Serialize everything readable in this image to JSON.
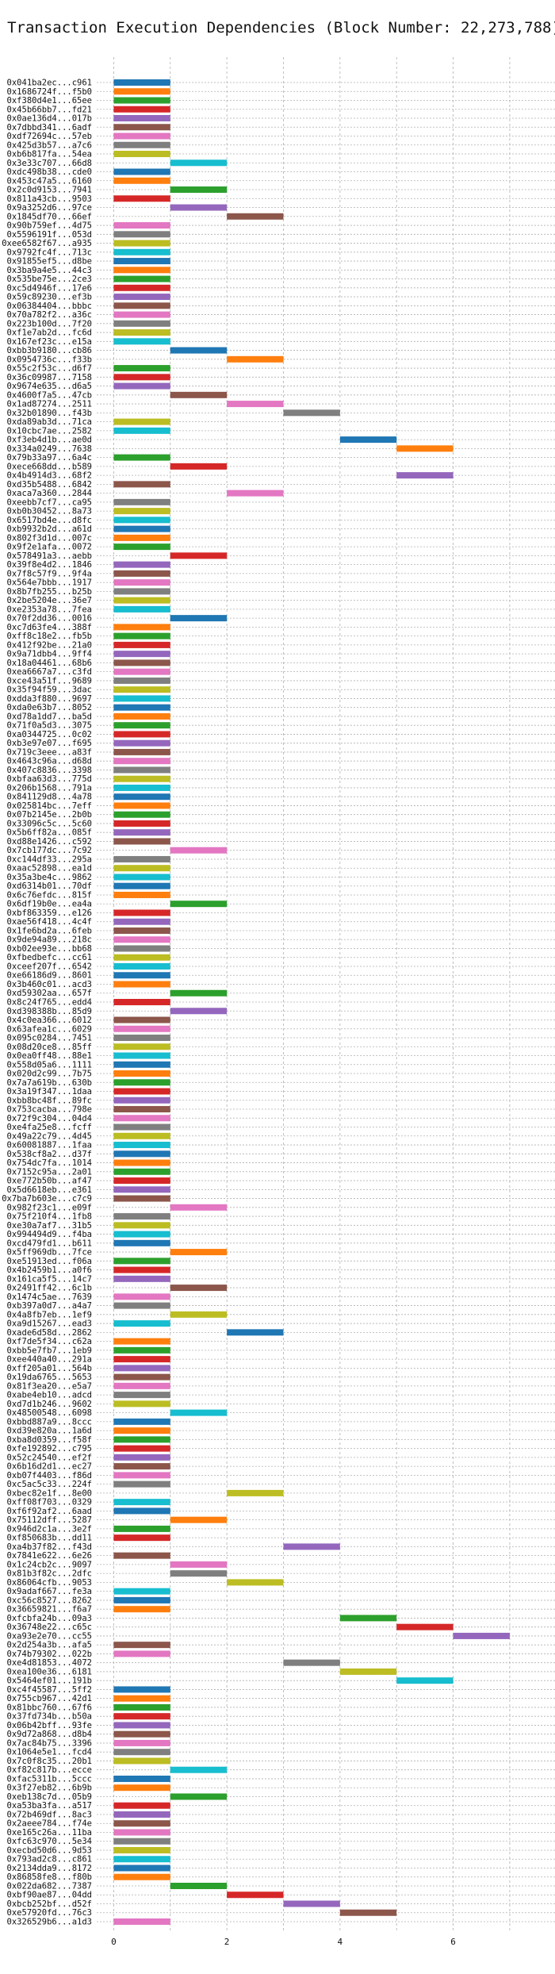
{
  "chart_data": {
    "type": "bar",
    "orientation": "horizontal-gantt",
    "title": "Transaction Execution Dependencies (Block Number: 22,273,788)",
    "xlabel": "",
    "ylabel": "",
    "xlim": [
      -0.3,
      7.8
    ],
    "xticks": [
      0,
      2,
      4,
      6
    ],
    "grid": true,
    "legend": "none",
    "palette": [
      "#1f77b4",
      "#ff7f0e",
      "#2ca02c",
      "#d62728",
      "#9467bd",
      "#8c564b",
      "#e377c2",
      "#7f7f7f",
      "#bcbd22",
      "#17becf"
    ],
    "transactions": [
      {
        "label": "0x041ba2ec...c961",
        "start": 0
      },
      {
        "label": "0x1686724f...f5b0",
        "start": 0
      },
      {
        "label": "0xf380d4e1...65ee",
        "start": 0
      },
      {
        "label": "0x45b66bb7...fd21",
        "start": 0
      },
      {
        "label": "0x0ae136d4...017b",
        "start": 0
      },
      {
        "label": "0x7dbbd341...6adf",
        "start": 0
      },
      {
        "label": "0xdf72694c...57eb",
        "start": 0
      },
      {
        "label": "0x425d3b57...a7c6",
        "start": 0
      },
      {
        "label": "0xb6b817fa...54ea",
        "start": 0
      },
      {
        "label": "0x3e33c707...66d8",
        "start": 1
      },
      {
        "label": "0xdc498b38...cde0",
        "start": 0
      },
      {
        "label": "0x453c47a5...6160",
        "start": 0
      },
      {
        "label": "0x2c0d9153...7941",
        "start": 1
      },
      {
        "label": "0x811a43cb...9503",
        "start": 0
      },
      {
        "label": "0x9a3252d6...97ce",
        "start": 1
      },
      {
        "label": "0x1845df70...66ef",
        "start": 2
      },
      {
        "label": "0x90b759ef...4d75",
        "start": 0
      },
      {
        "label": "0x5596191f...053d",
        "start": 0
      },
      {
        "label": "0xee6582f67...a935",
        "start": 0
      },
      {
        "label": "0x9792fc4f...713c",
        "start": 0
      },
      {
        "label": "0x91855ef5...d8be",
        "start": 0
      },
      {
        "label": "0x3ba9a4e5...44c3",
        "start": 0
      },
      {
        "label": "0x535be75e...2ce3",
        "start": 0
      },
      {
        "label": "0xc5d4946f...17e6",
        "start": 0
      },
      {
        "label": "0x59c89230...ef3b",
        "start": 0
      },
      {
        "label": "0x06384404...bbbc",
        "start": 0
      },
      {
        "label": "0x70a782f2...a36c",
        "start": 0
      },
      {
        "label": "0x223b100d...7f20",
        "start": 0
      },
      {
        "label": "0xf1e7ab2d...fc6d",
        "start": 0
      },
      {
        "label": "0x167ef23c...e15a",
        "start": 0
      },
      {
        "label": "0xbb3b9180...cb86",
        "start": 1
      },
      {
        "label": "0x0954736c...f33b",
        "start": 2
      },
      {
        "label": "0x55c2f53c...d6f7",
        "start": 0
      },
      {
        "label": "0x36c09987...7158",
        "start": 0
      },
      {
        "label": "0x9674e635...d6a5",
        "start": 0
      },
      {
        "label": "0x4600f7a5...47cb",
        "start": 1
      },
      {
        "label": "0x1ad87274...2511",
        "start": 2
      },
      {
        "label": "0x32b01890...f43b",
        "start": 3
      },
      {
        "label": "0xda89ab3d...71ca",
        "start": 0
      },
      {
        "label": "0x10cbc7ae...2582",
        "start": 0
      },
      {
        "label": "0xf3eb4d1b...ae0d",
        "start": 4
      },
      {
        "label": "0x334a0249...7638",
        "start": 5
      },
      {
        "label": "0x79b33a97...6a4c",
        "start": 0
      },
      {
        "label": "0xece668dd...b589",
        "start": 1
      },
      {
        "label": "0x4b4914d3...68f2",
        "start": 5
      },
      {
        "label": "0xd35b5488...6842",
        "start": 0
      },
      {
        "label": "0xaca7a360...2844",
        "start": 2
      },
      {
        "label": "0xeebb7cf7...ca95",
        "start": 0
      },
      {
        "label": "0xb0b30452...8a73",
        "start": 0
      },
      {
        "label": "0x6517bd4e...d8fc",
        "start": 0
      },
      {
        "label": "0xb9932b2d...a61d",
        "start": 0
      },
      {
        "label": "0x802f3d1d...007c",
        "start": 0
      },
      {
        "label": "0x9f2e1afa...0072",
        "start": 0
      },
      {
        "label": "0x578491a3...aebb",
        "start": 1
      },
      {
        "label": "0x39f8e4d2...1846",
        "start": 0
      },
      {
        "label": "0x7f8c57f9...9f4a",
        "start": 0
      },
      {
        "label": "0x564e7bbb...1917",
        "start": 0
      },
      {
        "label": "0x8b7fb255...b25b",
        "start": 0
      },
      {
        "label": "0x2be5204e...36e7",
        "start": 0
      },
      {
        "label": "0xe2353a78...7fea",
        "start": 0
      },
      {
        "label": "0x70f2dd36...0016",
        "start": 1
      },
      {
        "label": "0xc7d63fe4...388f",
        "start": 0
      },
      {
        "label": "0xff8c18e2...fb5b",
        "start": 0
      },
      {
        "label": "0x412f92be...21a0",
        "start": 0
      },
      {
        "label": "0x9a71dbb4...9ff4",
        "start": 0
      },
      {
        "label": "0x18a04461...68b6",
        "start": 0
      },
      {
        "label": "0xea6667a7...c3fd",
        "start": 0
      },
      {
        "label": "0xce43a51f...9689",
        "start": 0
      },
      {
        "label": "0x35f94f59...3dac",
        "start": 0
      },
      {
        "label": "0xdda3f880...9697",
        "start": 0
      },
      {
        "label": "0xda0e63b7...8052",
        "start": 0
      },
      {
        "label": "0xd78a1dd7...ba5d",
        "start": 0
      },
      {
        "label": "0x71f0a5d3...3075",
        "start": 0
      },
      {
        "label": "0xa0344725...0c02",
        "start": 0
      },
      {
        "label": "0xb3e97e07...f695",
        "start": 0
      },
      {
        "label": "0x719c3eee...a83f",
        "start": 0
      },
      {
        "label": "0x4643c96a...d68d",
        "start": 0
      },
      {
        "label": "0x407c8836...3398",
        "start": 0
      },
      {
        "label": "0xbfaa63d3...775d",
        "start": 0
      },
      {
        "label": "0x206b1568...791a",
        "start": 0
      },
      {
        "label": "0x841129d8...4a78",
        "start": 0
      },
      {
        "label": "0x025814bc...7eff",
        "start": 0
      },
      {
        "label": "0x07b2145e...2b0b",
        "start": 0
      },
      {
        "label": "0x33096c5c...5c60",
        "start": 0
      },
      {
        "label": "0x5b6ff82a...085f",
        "start": 0
      },
      {
        "label": "0xd88e1426...c592",
        "start": 0
      },
      {
        "label": "0x7cb177dc...7c92",
        "start": 1
      },
      {
        "label": "0xc144df33...295a",
        "start": 0
      },
      {
        "label": "0xaac52898...ea1d",
        "start": 0
      },
      {
        "label": "0x35a3be4c...9862",
        "start": 0
      },
      {
        "label": "0xd6314b01...70df",
        "start": 0
      },
      {
        "label": "0x6c76efdc...815f",
        "start": 0
      },
      {
        "label": "0x6df19b0e...ea4a",
        "start": 1
      },
      {
        "label": "0xbf863359...e126",
        "start": 0
      },
      {
        "label": "0xae56f418...4c4f",
        "start": 0
      },
      {
        "label": "0x1fe6bd2a...6feb",
        "start": 0
      },
      {
        "label": "0x9de94a89...218c",
        "start": 0
      },
      {
        "label": "0xb02ee93e...bb68",
        "start": 0
      },
      {
        "label": "0xfbedbefc...cc61",
        "start": 0
      },
      {
        "label": "0xceef207f...6542",
        "start": 0
      },
      {
        "label": "0xe66186d9...8601",
        "start": 0
      },
      {
        "label": "0x3b460c01...acd3",
        "start": 0
      },
      {
        "label": "0xd59302aa...657f",
        "start": 1
      },
      {
        "label": "0x8c24f765...edd4",
        "start": 0
      },
      {
        "label": "0xd398388b...85d9",
        "start": 1
      },
      {
        "label": "0x4c0ea366...6012",
        "start": 0
      },
      {
        "label": "0x63afea1c...6029",
        "start": 0
      },
      {
        "label": "0x095c0284...7451",
        "start": 0
      },
      {
        "label": "0x08d20ce8...85ff",
        "start": 0
      },
      {
        "label": "0x0ea0ff48...88e1",
        "start": 0
      },
      {
        "label": "0x558d05a6...1111",
        "start": 0
      },
      {
        "label": "0x020d2c99...7b75",
        "start": 0
      },
      {
        "label": "0x7a7a619b...630b",
        "start": 0
      },
      {
        "label": "0x3a19f347...1daa",
        "start": 0
      },
      {
        "label": "0xbb8bc48f...89fc",
        "start": 0
      },
      {
        "label": "0x753cacba...798e",
        "start": 0
      },
      {
        "label": "0x72f9c304...04d4",
        "start": 0
      },
      {
        "label": "0xe4fa25e8...fcff",
        "start": 0
      },
      {
        "label": "0x49a22c79...4d45",
        "start": 0
      },
      {
        "label": "0x60081887...1faa",
        "start": 0
      },
      {
        "label": "0x538cf8a2...d37f",
        "start": 0
      },
      {
        "label": "0x754dc7fa...1014",
        "start": 0
      },
      {
        "label": "0x7152c95a...2a01",
        "start": 0
      },
      {
        "label": "0xe772b50b...af47",
        "start": 0
      },
      {
        "label": "0x5d6618eb...e361",
        "start": 0
      },
      {
        "label": "0x7ba7b603e...c7c9",
        "start": 0
      },
      {
        "label": "0x982f23c1...e09f",
        "start": 1
      },
      {
        "label": "0x75f210f4...1fb8",
        "start": 0
      },
      {
        "label": "0xe30a7af7...31b5",
        "start": 0
      },
      {
        "label": "0x994494d9...f4ba",
        "start": 0
      },
      {
        "label": "0xcd479fd1...b611",
        "start": 0
      },
      {
        "label": "0x5ff969db...7fce",
        "start": 1
      },
      {
        "label": "0xe51913ed...f06a",
        "start": 0
      },
      {
        "label": "0x4b2459b1...a0f6",
        "start": 0
      },
      {
        "label": "0x161ca5f5...14c7",
        "start": 0
      },
      {
        "label": "0x2491ff42...6c1b",
        "start": 1
      },
      {
        "label": "0x1474c5ae...7639",
        "start": 0
      },
      {
        "label": "0xb397a0d7...a4a7",
        "start": 0
      },
      {
        "label": "0x4a8fb7eb...1ef9",
        "start": 1
      },
      {
        "label": "0xa9d15267...ead3",
        "start": 0
      },
      {
        "label": "0xade6d58d...2862",
        "start": 2
      },
      {
        "label": "0xf7de5f34...c62a",
        "start": 0
      },
      {
        "label": "0xbb5e7fb7...1eb9",
        "start": 0
      },
      {
        "label": "0xee440a40...291a",
        "start": 0
      },
      {
        "label": "0xff205a01...564b",
        "start": 0
      },
      {
        "label": "0x19da6765...5653",
        "start": 0
      },
      {
        "label": "0x81f3ea20...e5a7",
        "start": 0
      },
      {
        "label": "0xabe4eb10...adcd",
        "start": 0
      },
      {
        "label": "0xd7d1b246...9602",
        "start": 0
      },
      {
        "label": "0x48500548...6098",
        "start": 1
      },
      {
        "label": "0xbbd887a9...8ccc",
        "start": 0
      },
      {
        "label": "0xd39e820a...1a6d",
        "start": 0
      },
      {
        "label": "0xba8d0359...f58f",
        "start": 0
      },
      {
        "label": "0xfe192892...c795",
        "start": 0
      },
      {
        "label": "0x52c24540...ef2f",
        "start": 0
      },
      {
        "label": "0x6b16d2d1...ec27",
        "start": 0
      },
      {
        "label": "0xb07f4403...f86d",
        "start": 0
      },
      {
        "label": "0xc5ac5c33...224f",
        "start": 0
      },
      {
        "label": "0xbec82e1f...8e00",
        "start": 2
      },
      {
        "label": "0xff08f703...0329",
        "start": 0
      },
      {
        "label": "0xf6f92af2...6aad",
        "start": 0
      },
      {
        "label": "0x75112dff...5287",
        "start": 1
      },
      {
        "label": "0x946d2c1a...3e2f",
        "start": 0
      },
      {
        "label": "0xf850683b...dd11",
        "start": 0
      },
      {
        "label": "0xa4b37f82...f43d",
        "start": 3
      },
      {
        "label": "0x7841e622...6e26",
        "start": 0
      },
      {
        "label": "0x1c24cb2c...9097",
        "start": 1
      },
      {
        "label": "0x81b3f82c...2dfc",
        "start": 1
      },
      {
        "label": "0x86064cfb...9053",
        "start": 2
      },
      {
        "label": "0x9adaf667...fe3a",
        "start": 0
      },
      {
        "label": "0xc56c8527...8262",
        "start": 0
      },
      {
        "label": "0x36659821...f6a7",
        "start": 0
      },
      {
        "label": "0xfcbfa24b...09a3",
        "start": 4
      },
      {
        "label": "0x36748e22...c65c",
        "start": 5
      },
      {
        "label": "0xa93e2e70...cc55",
        "start": 6
      },
      {
        "label": "0x2d254a3b...afa5",
        "start": 0
      },
      {
        "label": "0x74b79302...022b",
        "start": 0
      },
      {
        "label": "0xe4d81853...4072",
        "start": 3
      },
      {
        "label": "0xea100e36...6181",
        "start": 4
      },
      {
        "label": "0x5464ef01...191b",
        "start": 5
      },
      {
        "label": "0xc4f45587...5ff2",
        "start": 0
      },
      {
        "label": "0x755cb967...42d1",
        "start": 0
      },
      {
        "label": "0x81bbc760...67f6",
        "start": 0
      },
      {
        "label": "0x37fd734b...b50a",
        "start": 0
      },
      {
        "label": "0x06b42bff...93fe",
        "start": 0
      },
      {
        "label": "0x9d72a868...d8b4",
        "start": 0
      },
      {
        "label": "0x7ac84b75...3396",
        "start": 0
      },
      {
        "label": "0x1064e5e1...fcd4",
        "start": 0
      },
      {
        "label": "0x7c0f8c35...20b1",
        "start": 0
      },
      {
        "label": "0xf82c817b...ecce",
        "start": 1
      },
      {
        "label": "0xfac5311b...5ccc",
        "start": 0
      },
      {
        "label": "0x3f27eb82...6b9b",
        "start": 0
      },
      {
        "label": "0xeb138c7d...05b9",
        "start": 1
      },
      {
        "label": "0xa53ba3fa...a517",
        "start": 0
      },
      {
        "label": "0x72b469df...8ac3",
        "start": 0
      },
      {
        "label": "0x2aeee784...f74e",
        "start": 0
      },
      {
        "label": "0xe165c26a...11ba",
        "start": 0
      },
      {
        "label": "0xfc63c970...5e34",
        "start": 0
      },
      {
        "label": "0xecbd50d6...9d53",
        "start": 0
      },
      {
        "label": "0x793ad2c8...c861",
        "start": 0
      },
      {
        "label": "0x2134dda9...8172",
        "start": 0
      },
      {
        "label": "0x86858fe8...f80b",
        "start": 0
      },
      {
        "label": "0x022da682...7387",
        "start": 1
      },
      {
        "label": "0xbf90ae87...04dd",
        "start": 2
      },
      {
        "label": "0xbcb252bf...d52f",
        "start": 3
      },
      {
        "label": "0xe57920fd...76c3",
        "start": 4
      },
      {
        "label": "0x326529b6...a1d3",
        "start": 0
      }
    ]
  }
}
